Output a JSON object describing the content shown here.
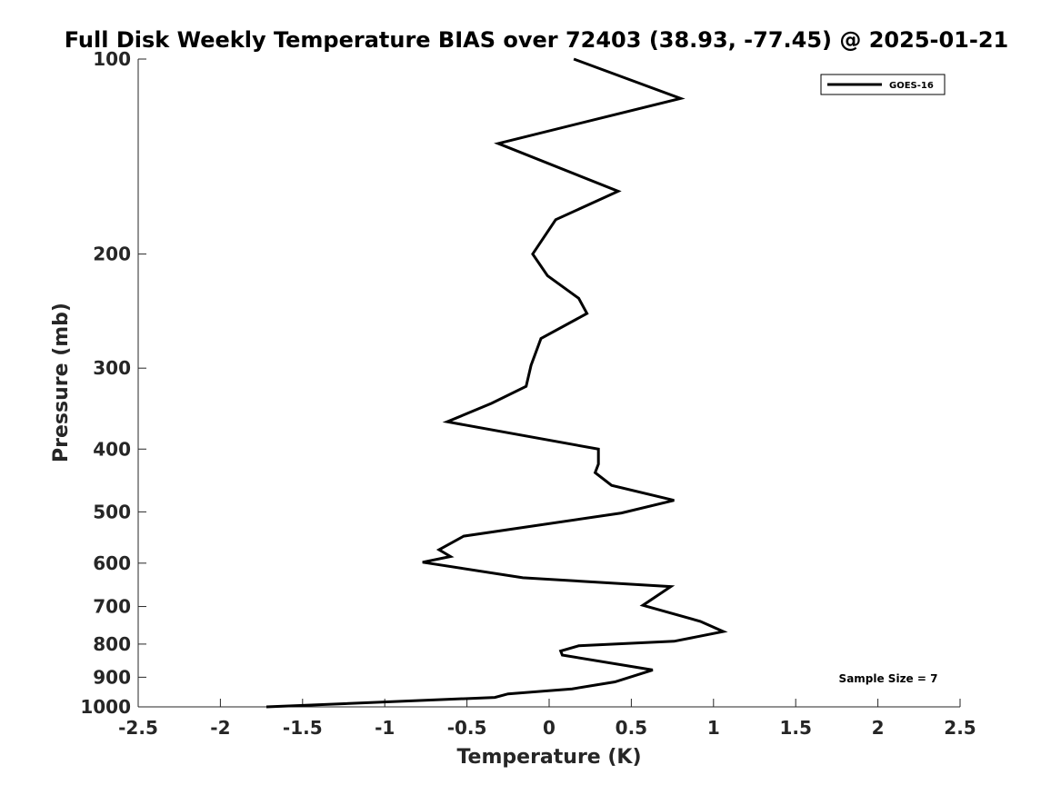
{
  "chart_data": {
    "type": "line",
    "title": "Full Disk Weekly Temperature BIAS over 72403 (38.93, -77.45) @ 2025-01-21",
    "xlabel": "Temperature (K)",
    "ylabel": "Pressure (mb)",
    "xlim": [
      -2.5,
      2.5
    ],
    "ylim": [
      1000,
      100
    ],
    "y_scale": "log",
    "y_reversed": true,
    "x_ticks": [
      -2.5,
      -2,
      -1.5,
      -1,
      -0.5,
      0,
      0.5,
      1,
      1.5,
      2,
      2.5
    ],
    "x_tick_labels": [
      "-2.5",
      "-2",
      "-1.5",
      "-1",
      "-0.5",
      "0",
      "0.5",
      "1",
      "1.5",
      "2",
      "2.5"
    ],
    "y_ticks": [
      100,
      200,
      300,
      400,
      500,
      600,
      700,
      800,
      900,
      1000
    ],
    "y_tick_labels": [
      "100",
      "200",
      "300",
      "400",
      "500",
      "600",
      "700",
      "800",
      "900",
      "1000"
    ],
    "grid": false,
    "legend_position": "top-right",
    "line_color": "#000000",
    "series": [
      {
        "name": "GOES-16",
        "x": [
          0.15,
          0.8,
          -0.31,
          0.42,
          0.04,
          -0.1,
          -0.01,
          0.18,
          0.23,
          -0.05,
          -0.11,
          -0.14,
          -0.35,
          -0.62,
          0.3,
          0.3,
          0.28,
          0.38,
          0.76,
          0.44,
          -0.52,
          -0.67,
          -0.6,
          -0.77,
          -0.16,
          0.74,
          0.57,
          0.92,
          1.06,
          0.76,
          0.18,
          0.07,
          0.08,
          0.63,
          0.4,
          0.14,
          -0.25,
          -0.33,
          -1.72
        ],
        "y": [
          100,
          115,
          135,
          160,
          177,
          200,
          216,
          234,
          247,
          270,
          297,
          320,
          340,
          363,
          400,
          422,
          435,
          455,
          480,
          502,
          545,
          572,
          586,
          598,
          632,
          652,
          697,
          738,
          765,
          792,
          805,
          820,
          832,
          877,
          915,
          938,
          955,
          967,
          1000
        ]
      }
    ],
    "annotations": [
      {
        "text": "Sample Size = 7"
      }
    ]
  }
}
